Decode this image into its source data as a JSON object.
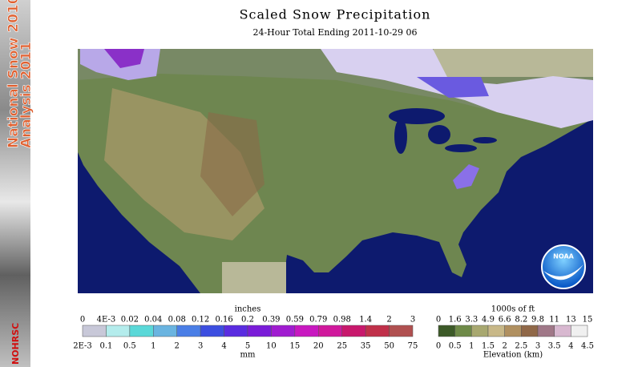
{
  "header": {
    "title": "Scaled Snow Precipitation",
    "subtitle": "24-Hour Total Ending 2011-10-29 06"
  },
  "sidebar": {
    "title_lines": [
      "National Snow 2010-",
      "Analysis 2011"
    ],
    "logo": "NOHRSC"
  },
  "map": {
    "logo": "NOAA"
  },
  "snowfall_legend": {
    "unit_top": "inches",
    "ticks_top": [
      "0",
      "4E-3",
      "0.02",
      "0.04",
      "0.08",
      "0.12",
      "0.16",
      "0.2",
      "0.39",
      "0.59",
      "0.79",
      "0.98",
      "1.4",
      "2",
      "3"
    ],
    "unit_bottom": "mm",
    "ticks_bottom": [
      "2E-3",
      "0.1",
      "0.5",
      "1",
      "2",
      "3",
      "4",
      "5",
      "10",
      "15",
      "20",
      "25",
      "35",
      "50",
      "75"
    ],
    "colors": [
      "#c8c8d8",
      "#b4ecec",
      "#5ad8d8",
      "#6ab4e0",
      "#4a7ee6",
      "#3c4ee0",
      "#5a2ce0",
      "#7a1cd8",
      "#a01cd0",
      "#c818c0",
      "#d0189c",
      "#c8186c",
      "#c0304a",
      "#b05050"
    ]
  },
  "elevation_legend": {
    "unit_top": "1000s of ft",
    "ticks_top": [
      "0",
      "1.6",
      "3.3",
      "4.9",
      "6.6",
      "8.2",
      "9.8",
      "11",
      "13",
      "15"
    ],
    "unit_bottom": "Elevation (km)",
    "ticks_bottom": [
      "0",
      "0.5",
      "1",
      "1.5",
      "2",
      "2.5",
      "3",
      "3.5",
      "4",
      "4.5"
    ],
    "colors": [
      "#3c5a28",
      "#6e8a48",
      "#a8a870",
      "#c8b888",
      "#b09060",
      "#906848",
      "#a07888",
      "#d8b8d0",
      "#f0f0f0"
    ]
  }
}
